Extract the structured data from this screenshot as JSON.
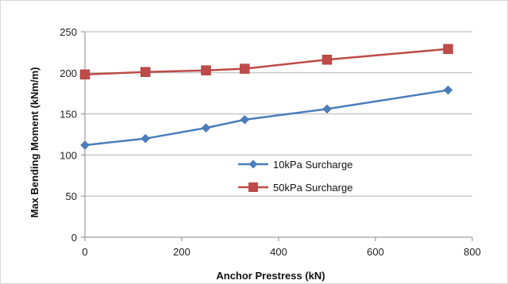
{
  "chart_data": {
    "type": "line",
    "title": "",
    "xlabel": "Anchor Prestress  (kN)",
    "ylabel": "Max Bending Moment (kNm/m)",
    "xlim": [
      0,
      800
    ],
    "ylim": [
      0,
      250
    ],
    "xticks": [
      0,
      200,
      400,
      600,
      800
    ],
    "yticks": [
      0,
      50,
      100,
      150,
      200,
      250
    ],
    "grid": "horizontal",
    "legend_position": "center-right",
    "series": [
      {
        "name": "10kPa Surcharge",
        "color": "#4a7ebb",
        "marker": "diamond",
        "x": [
          0,
          125,
          250,
          330,
          500,
          750
        ],
        "y": [
          112,
          120,
          133,
          143,
          156,
          179
        ]
      },
      {
        "name": "50kPa Surcharge",
        "color": "#be4b48",
        "marker": "square",
        "x": [
          0,
          125,
          250,
          330,
          500,
          750
        ],
        "y": [
          198,
          201,
          203,
          205,
          216,
          229
        ]
      }
    ]
  }
}
